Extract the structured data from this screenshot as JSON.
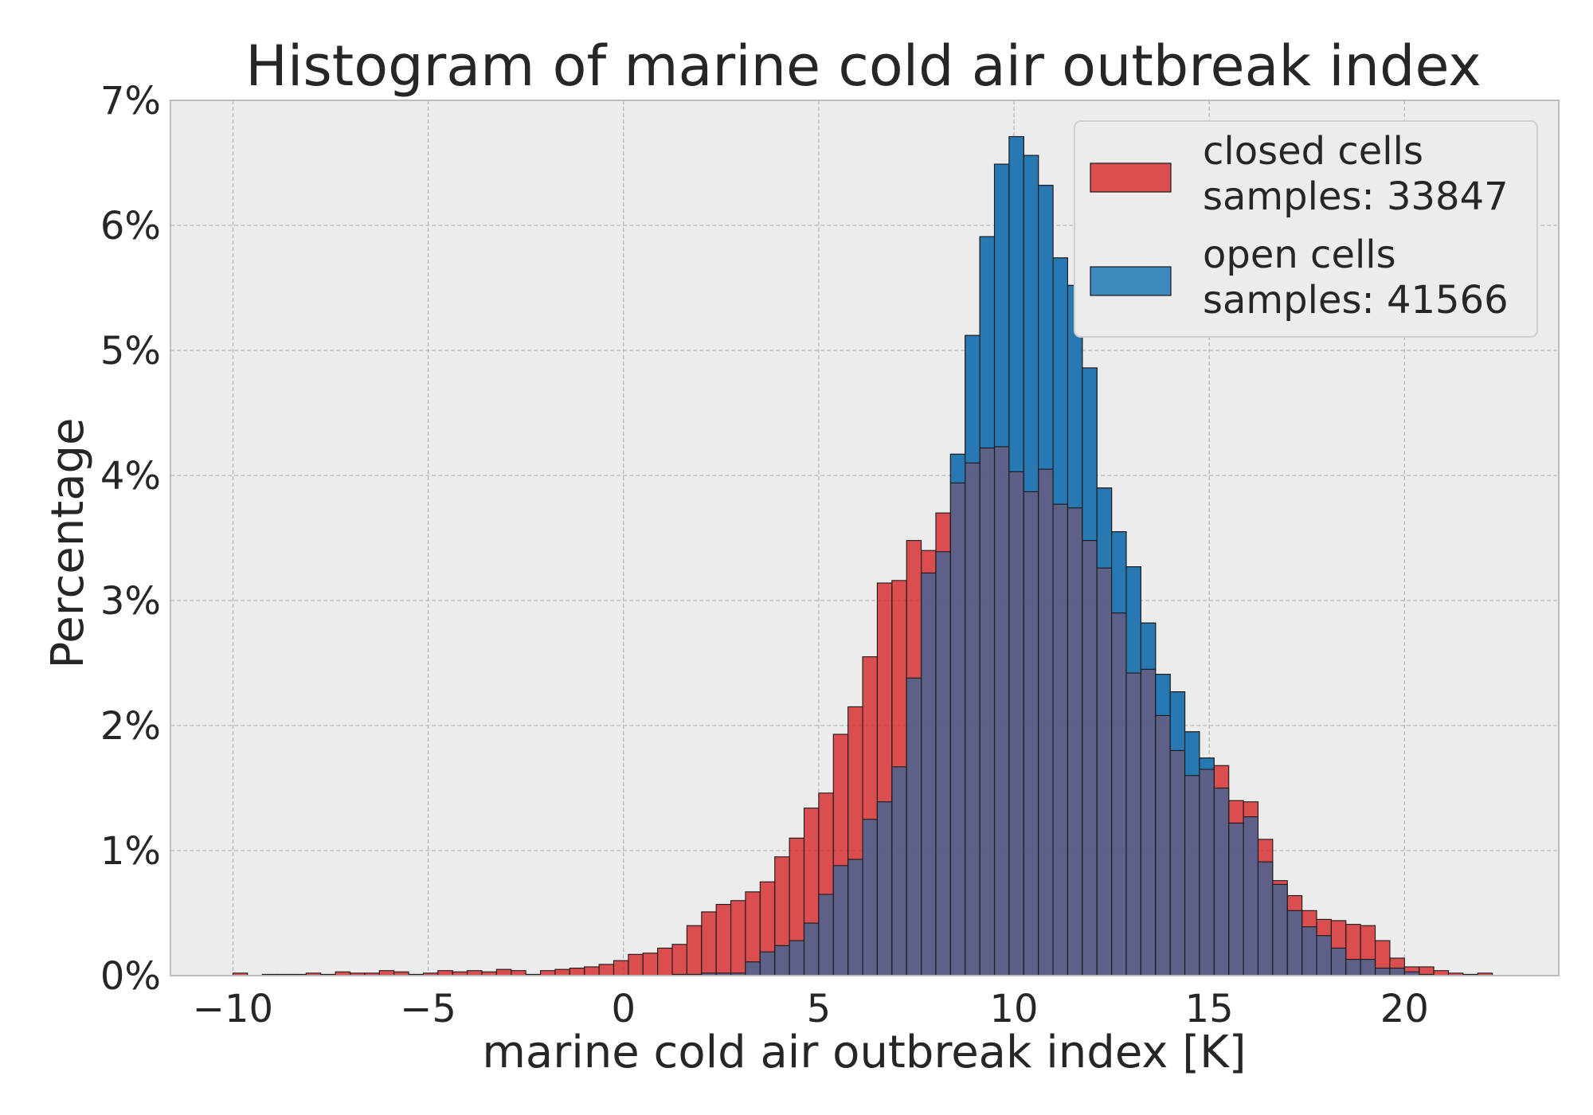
{
  "chart_data": {
    "type": "bar",
    "title": "Histogram of marine cold air outbreak index",
    "xlabel": "marine cold air outbreak index [K]",
    "ylabel": "Percentage",
    "xlim": [
      -11.6,
      23.95
    ],
    "ylim": [
      0,
      7.0
    ],
    "xticks": [
      -10,
      -5,
      0,
      5,
      10,
      15,
      20
    ],
    "xtick_labels": [
      "−10",
      "−5",
      "0",
      "5",
      "10",
      "15",
      "20"
    ],
    "yticks": [
      0,
      1,
      2,
      3,
      4,
      5,
      6,
      7
    ],
    "ytick_labels": [
      "0%",
      "1%",
      "2%",
      "3%",
      "4%",
      "5%",
      "6%",
      "7%"
    ],
    "grid": true,
    "legend_position": "top-right",
    "bin_start": -10.0,
    "bin_width": 0.375,
    "colors": {
      "closed": "#d62728",
      "open": "#1f77b4",
      "overlap": "#3f6596",
      "edge": "#1a1a1a",
      "axes_bg": "#ececec",
      "grid": "#b8b8b8"
    },
    "series": [
      {
        "name": "closed cells",
        "legend_lines": [
          "closed cells",
          "samples: 33847"
        ],
        "values": [
          0.02,
          0.0,
          0.01,
          0.01,
          0.01,
          0.02,
          0.01,
          0.03,
          0.02,
          0.02,
          0.04,
          0.03,
          0.01,
          0.02,
          0.04,
          0.03,
          0.04,
          0.03,
          0.05,
          0.04,
          0.01,
          0.04,
          0.05,
          0.06,
          0.07,
          0.09,
          0.12,
          0.17,
          0.18,
          0.22,
          0.25,
          0.4,
          0.51,
          0.57,
          0.6,
          0.67,
          0.75,
          0.95,
          1.1,
          1.34,
          1.46,
          1.93,
          2.15,
          2.55,
          3.14,
          3.16,
          3.48,
          3.4,
          3.7,
          3.94,
          4.1,
          4.22,
          4.23,
          4.03,
          3.87,
          4.05,
          3.77,
          3.74,
          3.48,
          3.26,
          2.9,
          2.42,
          2.45,
          2.08,
          1.8,
          1.6,
          1.65,
          1.68,
          1.4,
          1.39,
          1.09,
          0.76,
          0.64,
          0.52,
          0.45,
          0.44,
          0.41,
          0.4,
          0.28,
          0.14,
          0.07,
          0.07,
          0.04,
          0.02,
          0.01,
          0.02
        ]
      },
      {
        "name": "open cells",
        "legend_lines": [
          "open cells",
          "samples: 41566"
        ],
        "values": [
          0.0,
          0.0,
          0.0,
          0.0,
          0.0,
          0.0,
          0.0,
          0.0,
          0.0,
          0.0,
          0.0,
          0.0,
          0.0,
          0.0,
          0.0,
          0.0,
          0.0,
          0.0,
          0.0,
          0.0,
          0.0,
          0.0,
          0.0,
          0.0,
          0.0,
          0.0,
          0.0,
          0.0,
          0.0,
          0.0,
          0.01,
          0.01,
          0.02,
          0.02,
          0.02,
          0.11,
          0.19,
          0.24,
          0.28,
          0.42,
          0.65,
          0.88,
          0.93,
          1.25,
          1.39,
          1.67,
          2.38,
          3.22,
          3.39,
          4.17,
          5.12,
          5.91,
          6.49,
          6.71,
          6.56,
          6.32,
          5.74,
          5.52,
          4.86,
          3.9,
          3.55,
          3.27,
          2.82,
          2.41,
          2.27,
          1.95,
          1.74,
          1.5,
          1.22,
          1.27,
          0.91,
          0.73,
          0.52,
          0.39,
          0.32,
          0.22,
          0.13,
          0.13,
          0.06,
          0.06,
          0.03,
          0.01,
          0.0,
          0.0,
          0.0,
          0.0
        ]
      }
    ]
  }
}
